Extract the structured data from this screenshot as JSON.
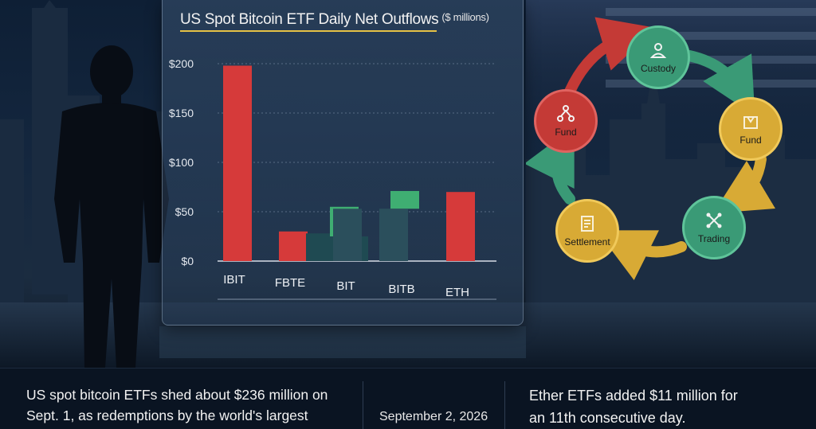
{
  "chart": {
    "title": "US Spot Bitcoin ETF Daily Net Outflows",
    "units": "($ millions)"
  },
  "chart_data": {
    "type": "bar",
    "title": "US Spot Bitcoin ETF Daily Net Outflows",
    "ylabel": "($ millions)",
    "xlabel": "",
    "categories": [
      "IBIT",
      "FBTE",
      "BIT",
      "BITB",
      "ETH"
    ],
    "y_tick_labels": [
      "$0",
      "$50",
      "$100",
      "$150",
      "$200"
    ],
    "ylim": [
      0,
      200
    ],
    "grid": true,
    "bars": [
      {
        "category": "IBIT",
        "base": 0,
        "top": 198,
        "color": "#d63a3a"
      },
      {
        "category": "FBTE",
        "base": 0,
        "top": 30,
        "color": "#d63a3a"
      },
      {
        "category": "FBTE",
        "base": 0,
        "top": 28,
        "color": "#1f4a52"
      },
      {
        "category": "BIT",
        "base": 25,
        "top": 55,
        "color": "#3fae72"
      },
      {
        "category": "BIT",
        "base": 0,
        "top": 25,
        "color": "#1f4a52"
      },
      {
        "category": "BIT",
        "base": 0,
        "top": 53,
        "color": "#2b4f5c"
      },
      {
        "category": "BITB",
        "base": 53,
        "top": 71,
        "color": "#3fae72"
      },
      {
        "category": "BITB",
        "base": 0,
        "top": 53,
        "color": "#2b4f5c"
      },
      {
        "category": "ETH",
        "base": 0,
        "top": 70,
        "color": "#d63a3a"
      }
    ]
  },
  "cycle": {
    "nodes": [
      {
        "label": "Custody",
        "color": "#3a9a76",
        "icon": "person-icon"
      },
      {
        "label": "Fund",
        "color": "#d8aa35",
        "icon": "building-icon"
      },
      {
        "label": "Trading",
        "color": "#3a9a76",
        "icon": "network-icon"
      },
      {
        "label": "Settlement",
        "color": "#d8aa35",
        "icon": "document-icon"
      },
      {
        "label": "Fund",
        "color": "#c43a36",
        "icon": "network-icon"
      }
    ]
  },
  "caption": {
    "left_line1": "US spot bitcoin ETFs shed about $236 million on",
    "left_line2": "Sept. 1, as redemptions by the world's largest",
    "date": "September 2, 2026",
    "right_line1": "Ether ETFs added $11 million for",
    "right_line2": "an 11th consecutive day."
  },
  "colors": {
    "outflow": "#d63a3a",
    "inflow": "#3fae72",
    "accent": "#e6c245"
  }
}
